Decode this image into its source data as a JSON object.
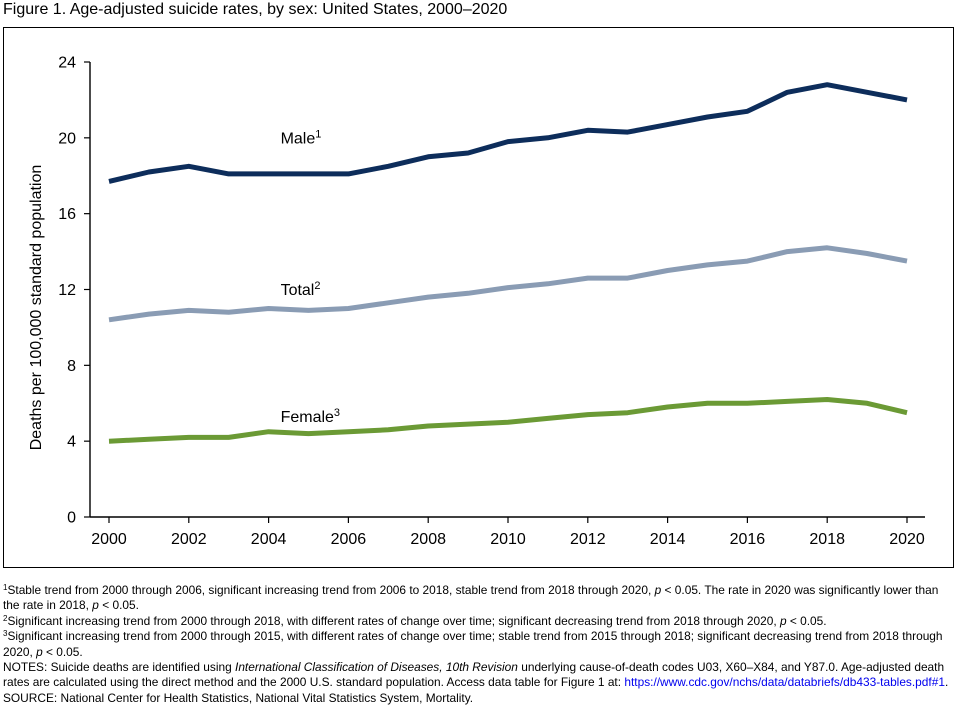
{
  "figure": {
    "title": "Figure 1. Age-adjusted suicide rates, by sex: United States, 2000–2020"
  },
  "chart_data": {
    "type": "line",
    "title": "Figure 1. Age-adjusted suicide rates, by sex: United States, 2000–2020",
    "xlabel": "",
    "ylabel": "Deaths per 100,000 standard population",
    "x": [
      2000,
      2001,
      2002,
      2003,
      2004,
      2005,
      2006,
      2007,
      2008,
      2009,
      2010,
      2011,
      2012,
      2013,
      2014,
      2015,
      2016,
      2017,
      2018,
      2019,
      2020
    ],
    "xticks": [
      "2000",
      "2002",
      "2004",
      "2006",
      "2008",
      "2010",
      "2012",
      "2014",
      "2016",
      "2018",
      "2020"
    ],
    "yticks": [
      "0",
      "4",
      "8",
      "12",
      "16",
      "20",
      "24"
    ],
    "ylim": [
      0,
      24
    ],
    "xlim": [
      2000,
      2020
    ],
    "grid": false,
    "series": [
      {
        "name": "Male",
        "sup": "1",
        "color": "#0d2d5b",
        "values": [
          17.7,
          18.2,
          18.5,
          18.1,
          18.1,
          18.1,
          18.1,
          18.5,
          19.0,
          19.2,
          19.8,
          20.0,
          20.4,
          20.3,
          20.7,
          21.1,
          21.4,
          22.4,
          22.8,
          22.4,
          22.0
        ],
        "label_x": 2004.3,
        "label_y": 19.7
      },
      {
        "name": "Total",
        "sup": "2",
        "color": "#8a9cb4",
        "values": [
          10.4,
          10.7,
          10.9,
          10.8,
          11.0,
          10.9,
          11.0,
          11.3,
          11.6,
          11.8,
          12.1,
          12.3,
          12.6,
          12.6,
          13.0,
          13.3,
          13.5,
          14.0,
          14.2,
          13.9,
          13.5
        ],
        "label_x": 2004.3,
        "label_y": 11.7
      },
      {
        "name": "Female",
        "sup": "3",
        "color": "#6b9a35",
        "values": [
          4.0,
          4.1,
          4.2,
          4.2,
          4.5,
          4.4,
          4.5,
          4.6,
          4.8,
          4.9,
          5.0,
          5.2,
          5.4,
          5.5,
          5.8,
          6.0,
          6.0,
          6.1,
          6.2,
          6.0,
          5.5
        ],
        "label_x": 2004.3,
        "label_y": 5.0
      }
    ]
  },
  "notes": {
    "n1_sup": "1",
    "n1_a": "Stable trend from 2000 through 2006, significant increasing trend from 2006 to 2018, stable trend from 2018 through 2020,",
    "n1_p": "p",
    "n1_b": "< 0.05. The rate in 2020 was significantly lower than the rate in 2018,",
    "n1_p2": "p",
    "n1_c": "< 0.05.",
    "n2_sup": "2",
    "n2_a": "Significant increasing trend from 2000 through 2018, with different rates of change over time; significant decreasing trend from 2018 through 2020,",
    "n2_p": "p",
    "n2_b": "< 0.05.",
    "n3_sup": "3",
    "n3_a": "Significant increasing trend from 2000 through 2015, with different rates of change over time; stable trend from 2015 through 2018; significant decreasing trend from 2018 through 2020,",
    "n3_p": "p",
    "n3_b": "< 0.05.",
    "notes_a": "NOTES: Suicide deaths are identified using",
    "notes_icd": "International Classification of Diseases, 10th Revision",
    "notes_b": "underlying cause-of-death codes U03, X60–X84, and Y87.0. Age-adjusted death rates are calculated using the direct method and the 2000 U.S. standard population. Access data table for Figure 1 at:",
    "link": "https://www.cdc.gov/nchs/data/databriefs/db433-tables.pdf#1",
    "link_end": ".",
    "source": "SOURCE: National Center for Health Statistics, National Vital Statistics System, Mortality."
  }
}
